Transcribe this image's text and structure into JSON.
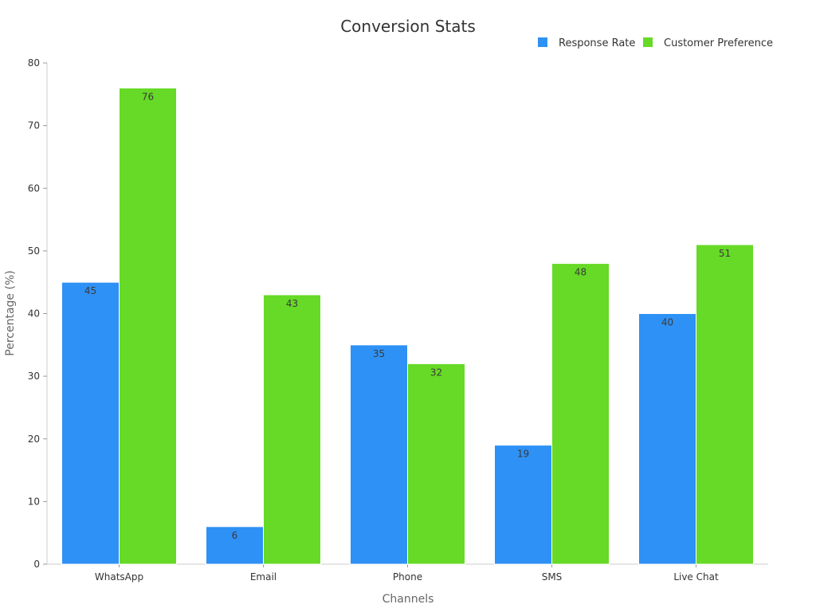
{
  "chart_data": {
    "type": "bar",
    "title": "Conversion Stats",
    "xlabel": "Channels",
    "ylabel": "Percentage (%)",
    "categories": [
      "WhatsApp",
      "Email",
      "Phone",
      "SMS",
      "Live Chat"
    ],
    "series": [
      {
        "name": "Response Rate",
        "color": "#2e91f5",
        "values": [
          45,
          6,
          35,
          19,
          40
        ]
      },
      {
        "name": "Customer Preference",
        "color": "#66da26",
        "values": [
          76,
          43,
          32,
          48,
          51
        ]
      }
    ],
    "ylim": [
      0,
      80
    ],
    "yticks": [
      0,
      10,
      20,
      30,
      40,
      50,
      60,
      70,
      80
    ],
    "grid": false,
    "legend_position": "top-right",
    "data_labels": true
  }
}
